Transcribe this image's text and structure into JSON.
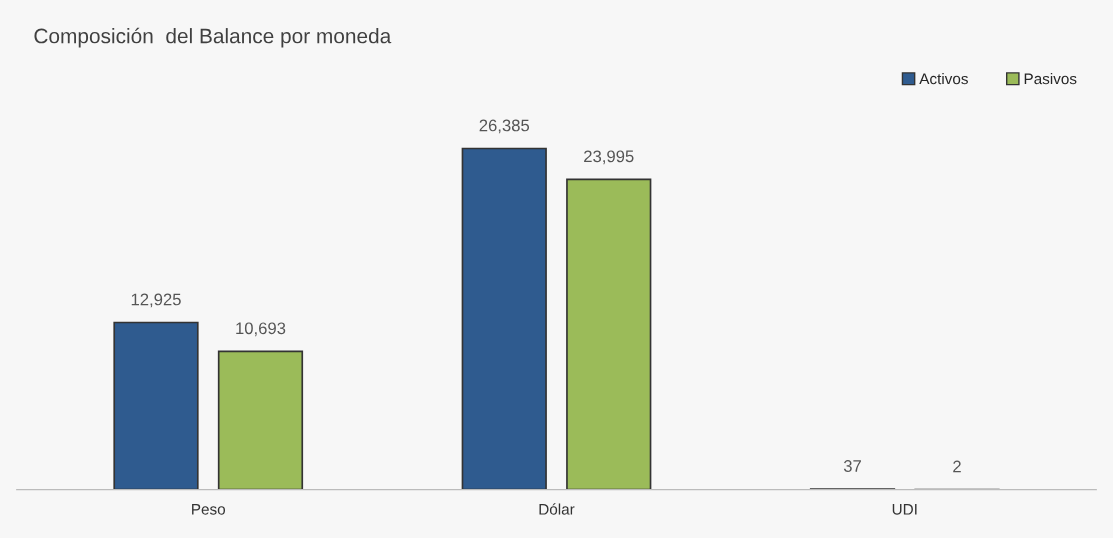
{
  "chart_data": {
    "type": "bar",
    "title": "Composición  del Balance por moneda",
    "categories": [
      "Peso",
      "Dólar",
      "UDI"
    ],
    "series": [
      {
        "name": "Activos",
        "color": "#2f5b8f",
        "values": [
          12925,
          26385,
          37
        ],
        "value_labels": [
          "12,925",
          "26,385",
          "37"
        ]
      },
      {
        "name": "Pasivos",
        "color": "#9bbb59",
        "values": [
          10693,
          23995,
          2
        ],
        "value_labels": [
          "10,693",
          "23,995",
          "2"
        ]
      }
    ],
    "legend": "top right",
    "grid": false
  }
}
